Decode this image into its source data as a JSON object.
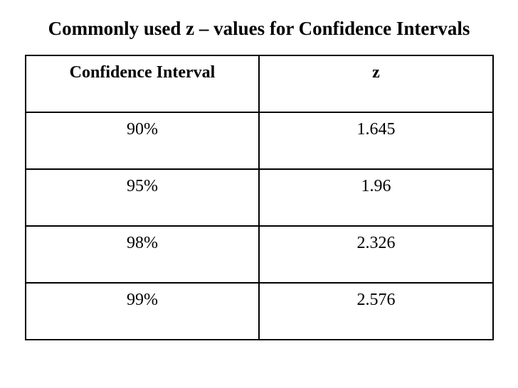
{
  "title": "Commonly used z – values for Confidence Intervals",
  "table": {
    "headers": [
      "Confidence Interval",
      "z"
    ],
    "rows": [
      [
        "90%",
        "1.645"
      ],
      [
        "95%",
        "1.96"
      ],
      [
        "98%",
        "2.326"
      ],
      [
        "99%",
        "2.576"
      ]
    ]
  }
}
